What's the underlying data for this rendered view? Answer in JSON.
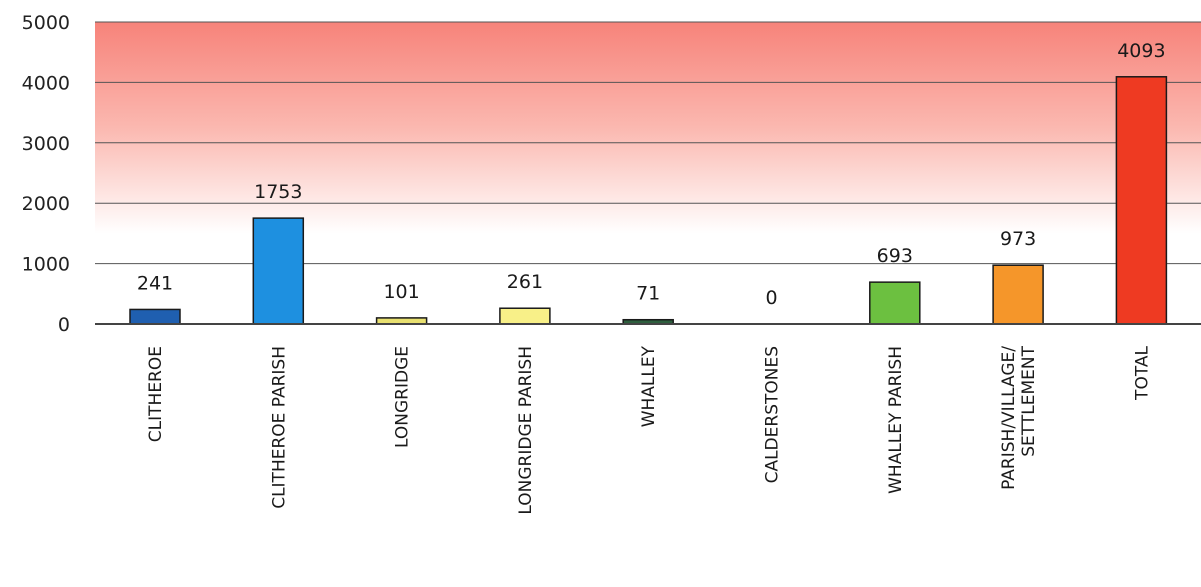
{
  "chart_data": {
    "type": "bar",
    "title": "",
    "xlabel": "",
    "ylabel": "",
    "ylim": [
      0,
      5000
    ],
    "yticks": [
      0,
      1000,
      2000,
      3000,
      4000,
      5000
    ],
    "grid": true,
    "legend": "none",
    "plot_background": "gradient red (top) to white (bottom)",
    "categories": [
      "CLITHEROE",
      "CLITHEROE PARISH",
      "LONGRIDGE",
      "LONGRIDGE PARISH",
      "WHALLEY",
      "CALDERSTONES",
      "WHALLEY PARISH",
      "PARISH/VILLAGE/ SETTLEMENT",
      "TOTAL"
    ],
    "values": [
      241,
      1753,
      101,
      261,
      71,
      0,
      693,
      973,
      4093
    ],
    "data_labels": [
      "241",
      "1753",
      "101",
      "261",
      "71",
      "0",
      "693",
      "973",
      "4093"
    ],
    "colors": [
      "#1f5fb0",
      "#1e90e0",
      "#e8e070",
      "#f8f088",
      "#2e5e3e",
      "#888888",
      "#6cc040",
      "#f5962a",
      "#ee3a22"
    ]
  }
}
